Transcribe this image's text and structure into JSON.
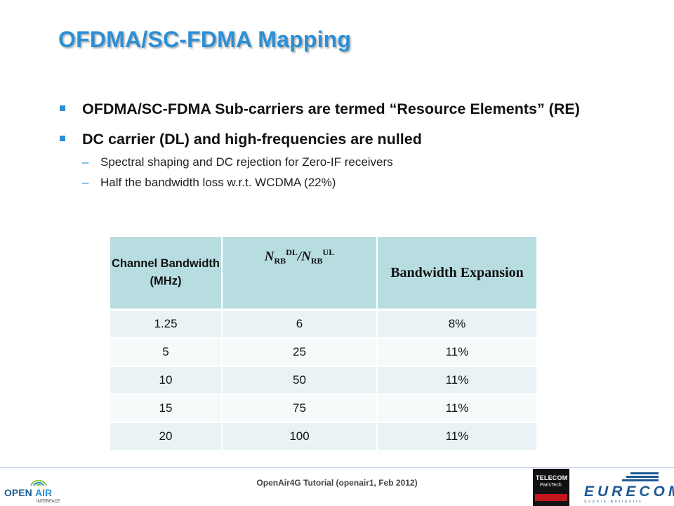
{
  "title": "OFDMA/SC-FDMA Mapping",
  "bullets": [
    {
      "text": "OFDMA/SC-FDMA Sub-carriers are termed “Resource Elements” (RE)",
      "sub": []
    },
    {
      "text": "DC carrier (DL) and high-frequencies are nulled",
      "sub": [
        "Spectral shaping and DC rejection for Zero-IF receivers",
        "Half the bandwidth loss w.r.t. WCDMA (22%)"
      ]
    }
  ],
  "table": {
    "header": {
      "col1": "Channel Bandwidth (MHz)",
      "col2_n1": "N",
      "col2_sub1": "RB",
      "col2_sup1": "DL",
      "col2_slash": "/",
      "col2_n2": "N",
      "col2_sub2": "RB",
      "col2_sup2": "UL",
      "col3": "Bandwidth Expansion"
    },
    "rows": [
      [
        "1.25",
        "6",
        "8%"
      ],
      [
        "5",
        "25",
        "11%"
      ],
      [
        "10",
        "50",
        "11%"
      ],
      [
        "15",
        "75",
        "11%"
      ],
      [
        "20",
        "100",
        "11%"
      ]
    ]
  },
  "footer": "OpenAir4G Tutorial (openair1, Feb 2012)",
  "logos": {
    "openair_line1": "OPEN",
    "openair_line2": "AIR",
    "openair_line3": "INTERFACE",
    "telecom_line1": "TELECOM",
    "telecom_line2": "ParisTech",
    "eurecom": "EURECOM",
    "eurecom_sub": "Sophia Antipolis"
  },
  "colors": {
    "accent": "#2b8fd6",
    "table_header": "#b8dde1",
    "eurecom_blue": "#1d5a93"
  }
}
